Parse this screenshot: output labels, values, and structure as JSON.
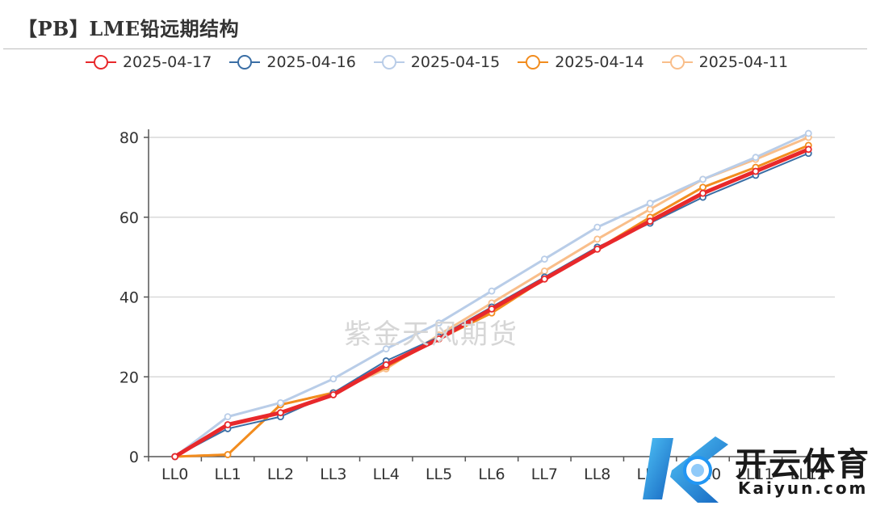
{
  "title": "【PB】LME铅远期结构",
  "watermark": "紫金天风期货",
  "logo": {
    "text": "开云体育",
    "subtext": "Kaiyun.com"
  },
  "chart_data": {
    "type": "line",
    "categories": [
      "LL0",
      "LL1",
      "LL2",
      "LL3",
      "LL4",
      "LL5",
      "LL6",
      "LL7",
      "LL8",
      "LL9",
      "LL10",
      "LL11",
      "LL12"
    ],
    "ylim": [
      0,
      80
    ],
    "yticks": [
      0,
      20,
      40,
      60,
      80
    ],
    "grid": true,
    "legend": "top-center",
    "series": [
      {
        "name": "2025-04-17",
        "color": "#e8282b",
        "width": 5,
        "values": [
          0,
          8,
          11,
          15.5,
          23,
          29.5,
          37,
          44.5,
          52,
          59,
          66,
          71.5,
          77
        ]
      },
      {
        "name": "2025-04-16",
        "color": "#3a6ea5",
        "width": 2,
        "values": [
          0,
          7,
          10,
          16,
          24,
          30,
          37.5,
          45,
          52.5,
          58.5,
          65,
          70.5,
          76
        ]
      },
      {
        "name": "2025-04-15",
        "color": "#b9cde8",
        "width": 3,
        "values": [
          0,
          10,
          13.5,
          19.5,
          27,
          33.5,
          41.5,
          49.5,
          57.5,
          63.5,
          69.5,
          75,
          81
        ]
      },
      {
        "name": "2025-04-14",
        "color": "#f28c1e",
        "width": 3,
        "values": [
          0,
          0.5,
          13,
          16,
          22.5,
          29.5,
          36,
          44.5,
          52,
          60,
          67.5,
          72.5,
          78
        ]
      },
      {
        "name": "2025-04-11",
        "color": "#f9be8a",
        "width": 3,
        "values": [
          0,
          0.5,
          13,
          16,
          22,
          30.5,
          38.5,
          46.5,
          54.5,
          62,
          69.5,
          74.5,
          80
        ]
      }
    ]
  }
}
